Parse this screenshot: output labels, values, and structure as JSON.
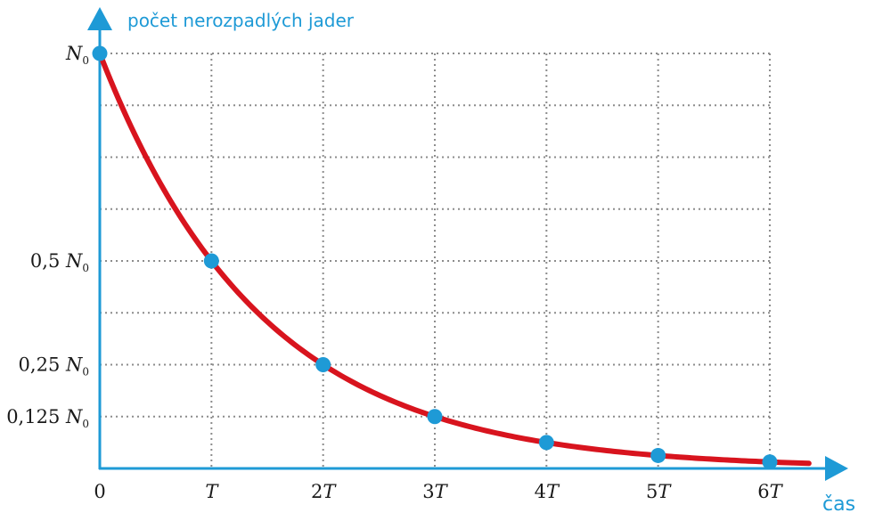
{
  "chart_data": {
    "type": "line",
    "xlabel": "čas",
    "ylabel": "počet nerozpadlých jader",
    "x_tick_labels": [
      "0",
      "T",
      "2T",
      "3T",
      "4T",
      "5T",
      "6T"
    ],
    "y_tick_labels": [
      "N0",
      "0,5 N0",
      "0,25 N0",
      "0,125 N0"
    ],
    "series": [
      {
        "x": [
          0,
          1,
          2,
          3,
          4,
          5,
          6
        ],
        "y": [
          1,
          0.5,
          0.25,
          0.125,
          0.0625,
          0.03125,
          0.015625
        ]
      }
    ],
    "curve_extends_to_x": 6.35,
    "xlim": [
      0,
      6
    ],
    "ylim": [
      0,
      1
    ],
    "grid": true,
    "colors": {
      "curve": "#d8141e",
      "points": "#1e9ad6",
      "axes": "#1e9ad6",
      "grid": "#8c8c8c"
    }
  }
}
